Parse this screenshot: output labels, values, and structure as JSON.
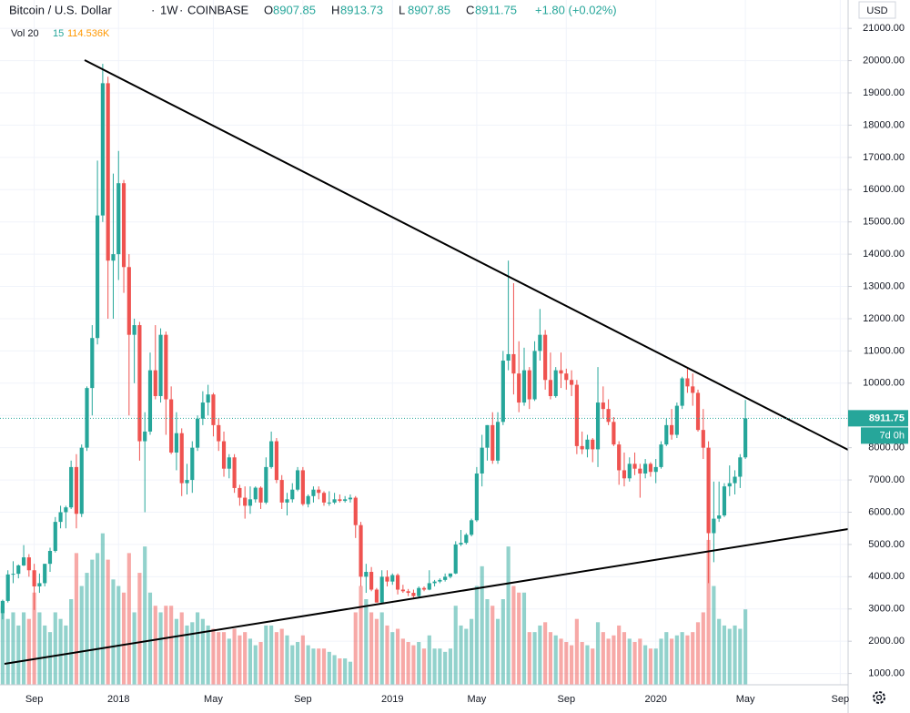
{
  "chart_data": {
    "type": "candlestick",
    "title": "Bitcoin / U.S. Dollar",
    "interval": "1W",
    "exchange": "COINBASE",
    "quote": [
      {
        "label": "O",
        "value": 8907.85
      },
      {
        "label": "H",
        "value": 8913.73
      },
      {
        "label": "L",
        "value": 8907.85
      },
      {
        "label": "C",
        "value": 8911.75
      }
    ],
    "change": "+1.80 (+0.02%)",
    "volume_legend": {
      "name": "Vol 20",
      "length": 15,
      "value": "114.536K"
    },
    "currency": "USD",
    "last_price": 8911.75,
    "countdown": "7d 0h",
    "up_color": "#26a69a",
    "down_color": "#ef5350",
    "grid": true,
    "categories": [
      null,
      null,
      null,
      null,
      null,
      null,
      "Sep",
      null,
      null,
      null,
      null,
      null,
      null,
      null,
      null,
      null,
      null,
      null,
      null,
      null,
      null,
      null,
      "2018",
      null,
      null,
      null,
      null,
      null,
      null,
      null,
      null,
      null,
      null,
      null,
      null,
      null,
      null,
      null,
      null,
      null,
      "May",
      null,
      null,
      null,
      null,
      null,
      null,
      null,
      null,
      null,
      null,
      null,
      null,
      null,
      null,
      null,
      null,
      "Sep",
      null,
      null,
      null,
      null,
      null,
      null,
      null,
      null,
      null,
      null,
      null,
      null,
      null,
      null,
      null,
      null,
      "2019",
      null,
      null,
      null,
      null,
      null,
      null,
      null,
      null,
      null,
      null,
      null,
      null,
      null,
      null,
      null,
      "May",
      null,
      null,
      null,
      null,
      null,
      null,
      null,
      null,
      null,
      null,
      null,
      null,
      null,
      null,
      null,
      null,
      "Sep",
      null,
      null,
      null,
      null,
      null,
      null,
      null,
      null,
      null,
      null,
      null,
      null,
      null,
      null,
      null,
      null,
      "2020",
      null,
      null,
      null,
      null,
      null,
      null,
      null,
      null,
      null,
      null,
      null,
      null,
      null,
      null,
      null,
      null,
      "May",
      null,
      null,
      null,
      null,
      null,
      null,
      null,
      null,
      null,
      null,
      null,
      null,
      null,
      null,
      null,
      null,
      null,
      "Sep",
      null
    ],
    "open": [
      2870,
      3250,
      4070,
      4090,
      4350,
      4600,
      4200,
      3700,
      3800,
      4400,
      4800,
      5700,
      6000,
      6150,
      7400,
      5950,
      8000,
      9850,
      11400,
      15200,
      19300,
      13800,
      14000,
      16200,
      13600,
      11500,
      11800,
      8200,
      8500,
      10400,
      9600,
      11500,
      9500,
      7850,
      8450,
      6900,
      7000,
      8000,
      8900,
      9400,
      9650,
      8700,
      8200,
      7350,
      7700,
      6750,
      6450,
      6200,
      6400,
      6760,
      6300,
      7400,
      8200,
      7000,
      6300,
      6400,
      6700,
      7300,
      6250,
      6500,
      6700,
      6600,
      6300,
      6300,
      6400,
      6350,
      6400,
      6450,
      5600,
      4000,
      4150,
      3600,
      3200,
      4000,
      3850,
      4050,
      3600,
      3550,
      3500,
      3400,
      3650,
      3600,
      3800,
      3850,
      3900,
      4000,
      4100,
      5000,
      5050,
      5300,
      5750,
      7200,
      8000,
      8700,
      7600,
      8800,
      10700,
      10900,
      10300,
      9400,
      10400,
      9500,
      11000,
      11500,
      10100,
      9600,
      10400,
      10300,
      10100,
      9950,
      8050,
      7950,
      8250,
      7950,
      9400,
      9200,
      8800,
      8100,
      7300,
      7050,
      7500,
      7350,
      7200,
      7500,
      7250,
      7400,
      8100,
      8700,
      8400,
      9300,
      10150,
      9900,
      9700,
      8550,
      8000,
      5350,
      5800,
      5900,
      6800,
      6900,
      7100,
      7700,
      null,
      null,
      null,
      null,
      null,
      null,
      null,
      null,
      null,
      null,
      null,
      null,
      null,
      null,
      null,
      null,
      null,
      null,
      null
    ],
    "high": [
      3290,
      4200,
      4480,
      4380,
      4980,
      4700,
      4400,
      4100,
      4400,
      4900,
      5850,
      6200,
      6200,
      7600,
      7800,
      8100,
      9900,
      11800,
      16900,
      19900,
      19500,
      16500,
      17200,
      16300,
      14000,
      12000,
      11900,
      9100,
      10950,
      11800,
      11700,
      11600,
      9900,
      9100,
      8600,
      7500,
      8200,
      9000,
      9750,
      9950,
      9700,
      8900,
      8500,
      7800,
      7800,
      6850,
      6800,
      6800,
      6800,
      6800,
      7700,
      8500,
      8300,
      7150,
      6600,
      6900,
      7400,
      7400,
      6550,
      6800,
      6800,
      6650,
      6650,
      6600,
      6550,
      6500,
      6550,
      6500,
      5700,
      4400,
      4300,
      3650,
      4200,
      4200,
      4100,
      4100,
      3750,
      3620,
      3600,
      3700,
      3700,
      4200,
      3900,
      3950,
      4100,
      4100,
      5100,
      5450,
      5350,
      5800,
      7400,
      8400,
      8700,
      9100,
      9100,
      11000,
      13800,
      13100,
      11300,
      11100,
      10500,
      11300,
      12300,
      11650,
      10950,
      10500,
      10950,
      10450,
      10400,
      10100,
      8500,
      8400,
      8300,
      10500,
      9900,
      9500,
      8950,
      8200,
      7850,
      7700,
      7850,
      7500,
      7650,
      7550,
      7650,
      8200,
      8900,
      9200,
      9400,
      10200,
      10500,
      10300,
      9800,
      9200,
      8200,
      6950,
      6950,
      6900,
      7450,
      7300,
      7800,
      9480,
      null,
      null,
      null,
      null,
      null,
      null,
      null,
      null,
      null,
      null,
      null,
      null,
      null,
      null,
      null,
      null,
      null,
      null,
      null
    ],
    "low": [
      2680,
      3200,
      3800,
      3950,
      4330,
      4000,
      2970,
      3500,
      3700,
      4150,
      4750,
      5500,
      5500,
      6100,
      5500,
      5850,
      7900,
      9000,
      11200,
      15000,
      12000,
      12000,
      13200,
      12800,
      9000,
      10000,
      7600,
      6000,
      8400,
      9500,
      9400,
      8400,
      7800,
      7300,
      6500,
      6550,
      6600,
      7900,
      8700,
      9000,
      8350,
      7900,
      7100,
      7050,
      6600,
      6200,
      5800,
      5950,
      6300,
      6100,
      6250,
      7350,
      6900,
      6100,
      5900,
      6300,
      6650,
      6200,
      6150,
      6300,
      6400,
      6200,
      6200,
      6250,
      6300,
      6300,
      6300,
      5200,
      3700,
      3500,
      3550,
      3200,
      3150,
      3700,
      3750,
      3450,
      3500,
      3400,
      3350,
      3350,
      3550,
      3580,
      3700,
      3800,
      3850,
      3950,
      4080,
      4950,
      5000,
      5250,
      5700,
      6800,
      7600,
      7500,
      7500,
      8700,
      10400,
      9650,
      9100,
      9300,
      9200,
      9450,
      10700,
      9800,
      9500,
      9550,
      9850,
      9800,
      9600,
      7800,
      7800,
      7700,
      7550,
      7400,
      8900,
      8700,
      8050,
      6850,
      6800,
      6950,
      7150,
      6450,
      7050,
      7100,
      6900,
      7350,
      8050,
      8250,
      8300,
      9200,
      9700,
      9300,
      8500,
      7650,
      3800,
      4450,
      5700,
      5850,
      6500,
      6550,
      6750,
      7650,
      null,
      null,
      null,
      null,
      null,
      null,
      null,
      null,
      null,
      null,
      null,
      null,
      null,
      null,
      null,
      null,
      null,
      null,
      null
    ],
    "close": [
      3250,
      4070,
      4090,
      4350,
      4600,
      4200,
      3700,
      3800,
      4400,
      4800,
      5700,
      6000,
      6150,
      7400,
      5950,
      8000,
      9850,
      11400,
      15200,
      19300,
      13800,
      14000,
      16200,
      13600,
      11500,
      11800,
      8200,
      8500,
      10400,
      9600,
      11500,
      9500,
      7850,
      8450,
      6900,
      7000,
      8000,
      8900,
      9400,
      9650,
      8700,
      8200,
      7350,
      7700,
      6750,
      6450,
      6200,
      6400,
      6760,
      6300,
      7400,
      8200,
      7000,
      6300,
      6400,
      6700,
      7300,
      6250,
      6500,
      6700,
      6600,
      6300,
      6300,
      6400,
      6350,
      6400,
      6450,
      5600,
      4000,
      4150,
      3600,
      3200,
      4000,
      3850,
      4050,
      3600,
      3550,
      3500,
      3400,
      3650,
      3600,
      3800,
      3850,
      3900,
      4000,
      4100,
      5000,
      5050,
      5300,
      5750,
      7200,
      8000,
      8700,
      7600,
      8800,
      10700,
      10900,
      10300,
      9400,
      10400,
      9500,
      11000,
      11500,
      10100,
      9600,
      10400,
      10300,
      10100,
      9950,
      8050,
      7950,
      8250,
      7950,
      9400,
      9200,
      8800,
      8100,
      7300,
      7050,
      7500,
      7350,
      7200,
      7500,
      7250,
      7400,
      8100,
      8700,
      8400,
      9300,
      10150,
      9900,
      9700,
      8550,
      8000,
      5350,
      5800,
      5900,
      6800,
      6900,
      7100,
      7700,
      8912,
      null,
      null,
      null,
      null,
      null,
      null,
      null,
      null,
      null,
      null,
      null,
      null,
      null,
      null,
      null,
      null,
      null,
      null,
      null
    ],
    "volume": [
      120,
      100,
      110,
      90,
      110,
      100,
      140,
      110,
      90,
      80,
      110,
      100,
      90,
      130,
      200,
      150,
      170,
      190,
      200,
      230,
      190,
      160,
      150,
      140,
      200,
      110,
      170,
      210,
      140,
      120,
      110,
      120,
      120,
      100,
      110,
      90,
      95,
      110,
      100,
      90,
      85,
      80,
      80,
      70,
      85,
      75,
      80,
      70,
      60,
      65,
      90,
      90,
      80,
      85,
      75,
      60,
      65,
      75,
      60,
      55,
      55,
      55,
      50,
      45,
      40,
      40,
      35,
      110,
      150,
      130,
      110,
      100,
      110,
      90,
      80,
      85,
      70,
      65,
      60,
      65,
      55,
      75,
      55,
      55,
      50,
      55,
      120,
      90,
      85,
      100,
      150,
      180,
      130,
      120,
      100,
      130,
      210,
      150,
      140,
      140,
      80,
      80,
      90,
      95,
      80,
      75,
      70,
      65,
      60,
      100,
      65,
      60,
      55,
      95,
      80,
      70,
      75,
      90,
      80,
      70,
      65,
      70,
      60,
      55,
      55,
      70,
      80,
      70,
      75,
      80,
      75,
      80,
      95,
      110,
      220,
      150,
      100,
      90,
      85,
      90,
      85,
      114.536,
      null,
      null,
      null,
      null,
      null,
      null,
      null,
      null,
      null,
      null,
      null,
      null,
      null,
      null,
      null,
      null,
      null,
      null,
      null
    ],
    "ylim": [
      650,
      21880
    ],
    "volume_ylim": [
      0,
      1040
    ],
    "yticks": [
      {
        "value": 1000,
        "label": "1000.00"
      },
      {
        "value": 2000,
        "label": "2000.00"
      },
      {
        "value": 3000,
        "label": "3000.00"
      },
      {
        "value": 4000,
        "label": "4000.00"
      },
      {
        "value": 5000,
        "label": "5000.00"
      },
      {
        "value": 6000,
        "label": "6000.00"
      },
      {
        "value": 7000,
        "label": "7000.00"
      },
      {
        "value": 8000,
        "label": "8000.00"
      },
      {
        "value": 9000,
        "label": "9000.00"
      },
      {
        "value": 10000,
        "label": "10000.00"
      },
      {
        "value": 11000,
        "label": "11000.00"
      },
      {
        "value": 12000,
        "label": "12000.00"
      },
      {
        "value": 13000,
        "label": "13000.00"
      },
      {
        "value": 14000,
        "label": "14000.00"
      },
      {
        "value": 15000,
        "label": "15000.00"
      },
      {
        "value": 16000,
        "label": "16000.00"
      },
      {
        "value": 17000,
        "label": "17000.00"
      },
      {
        "value": 18000,
        "label": "18000.00"
      },
      {
        "value": 19000,
        "label": "19000.00"
      },
      {
        "value": 20000,
        "label": "20000.00"
      },
      {
        "value": 21000,
        "label": "21000.00"
      }
    ]
  }
}
